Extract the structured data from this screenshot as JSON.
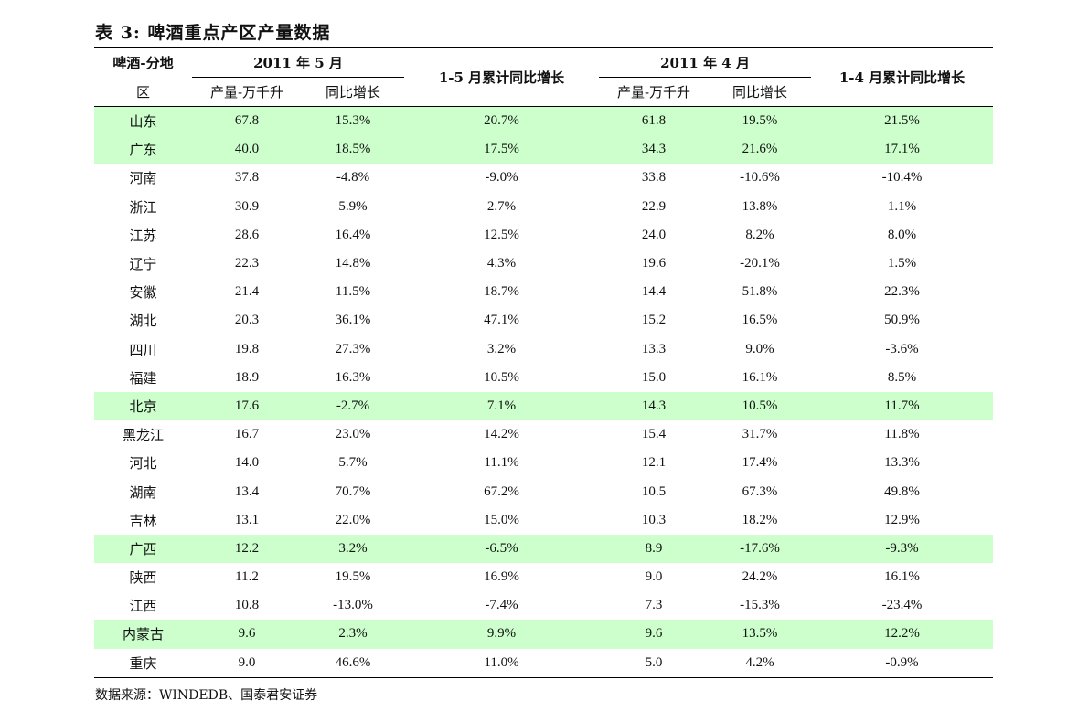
{
  "title": "表 3:  啤酒重点产区产量数据",
  "header": {
    "region_top": "啤酒-分地",
    "region_bottom": "区",
    "group1": "2011 年 5 月",
    "group1_col1": "产量-万千升",
    "group1_col2": "同比增长",
    "cum1": "1-5 月累计同比增长",
    "group2": "2011 年 4 月",
    "group2_col1": "产量-万千升",
    "group2_col2": "同比增长",
    "cum2": "1-4 月累计同比增长"
  },
  "rows": [
    {
      "region": "山东",
      "prod_may": "67.8",
      "yoy_may": "15.3%",
      "cum_5": "20.7%",
      "prod_apr": "61.8",
      "yoy_apr": "19.5%",
      "cum_4": "21.5%",
      "highlight": true
    },
    {
      "region": "广东",
      "prod_may": "40.0",
      "yoy_may": "18.5%",
      "cum_5": "17.5%",
      "prod_apr": "34.3",
      "yoy_apr": "21.6%",
      "cum_4": "17.1%",
      "highlight": true
    },
    {
      "region": "河南",
      "prod_may": "37.8",
      "yoy_may": "-4.8%",
      "cum_5": "-9.0%",
      "prod_apr": "33.8",
      "yoy_apr": "-10.6%",
      "cum_4": "-10.4%",
      "highlight": false
    },
    {
      "region": "浙江",
      "prod_may": "30.9",
      "yoy_may": "5.9%",
      "cum_5": "2.7%",
      "prod_apr": "22.9",
      "yoy_apr": "13.8%",
      "cum_4": "1.1%",
      "highlight": false
    },
    {
      "region": "江苏",
      "prod_may": "28.6",
      "yoy_may": "16.4%",
      "cum_5": "12.5%",
      "prod_apr": "24.0",
      "yoy_apr": "8.2%",
      "cum_4": "8.0%",
      "highlight": false
    },
    {
      "region": "辽宁",
      "prod_may": "22.3",
      "yoy_may": "14.8%",
      "cum_5": "4.3%",
      "prod_apr": "19.6",
      "yoy_apr": "-20.1%",
      "cum_4": "1.5%",
      "highlight": false
    },
    {
      "region": "安徽",
      "prod_may": "21.4",
      "yoy_may": "11.5%",
      "cum_5": "18.7%",
      "prod_apr": "14.4",
      "yoy_apr": "51.8%",
      "cum_4": "22.3%",
      "highlight": false
    },
    {
      "region": "湖北",
      "prod_may": "20.3",
      "yoy_may": "36.1%",
      "cum_5": "47.1%",
      "prod_apr": "15.2",
      "yoy_apr": "16.5%",
      "cum_4": "50.9%",
      "highlight": false
    },
    {
      "region": "四川",
      "prod_may": "19.8",
      "yoy_may": "27.3%",
      "cum_5": "3.2%",
      "prod_apr": "13.3",
      "yoy_apr": "9.0%",
      "cum_4": "-3.6%",
      "highlight": false
    },
    {
      "region": "福建",
      "prod_may": "18.9",
      "yoy_may": "16.3%",
      "cum_5": "10.5%",
      "prod_apr": "15.0",
      "yoy_apr": "16.1%",
      "cum_4": "8.5%",
      "highlight": false
    },
    {
      "region": "北京",
      "prod_may": "17.6",
      "yoy_may": "-2.7%",
      "cum_5": "7.1%",
      "prod_apr": "14.3",
      "yoy_apr": "10.5%",
      "cum_4": "11.7%",
      "highlight": true
    },
    {
      "region": "黑龙江",
      "prod_may": "16.7",
      "yoy_may": "23.0%",
      "cum_5": "14.2%",
      "prod_apr": "15.4",
      "yoy_apr": "31.7%",
      "cum_4": "11.8%",
      "highlight": false
    },
    {
      "region": "河北",
      "prod_may": "14.0",
      "yoy_may": "5.7%",
      "cum_5": "11.1%",
      "prod_apr": "12.1",
      "yoy_apr": "17.4%",
      "cum_4": "13.3%",
      "highlight": false
    },
    {
      "region": "湖南",
      "prod_may": "13.4",
      "yoy_may": "70.7%",
      "cum_5": "67.2%",
      "prod_apr": "10.5",
      "yoy_apr": "67.3%",
      "cum_4": "49.8%",
      "highlight": false
    },
    {
      "region": "吉林",
      "prod_may": "13.1",
      "yoy_may": "22.0%",
      "cum_5": "15.0%",
      "prod_apr": "10.3",
      "yoy_apr": "18.2%",
      "cum_4": "12.9%",
      "highlight": false
    },
    {
      "region": "广西",
      "prod_may": "12.2",
      "yoy_may": "3.2%",
      "cum_5": "-6.5%",
      "prod_apr": "8.9",
      "yoy_apr": "-17.6%",
      "cum_4": "-9.3%",
      "highlight": true
    },
    {
      "region": "陕西",
      "prod_may": "11.2",
      "yoy_may": "19.5%",
      "cum_5": "16.9%",
      "prod_apr": "9.0",
      "yoy_apr": "24.2%",
      "cum_4": "16.1%",
      "highlight": false
    },
    {
      "region": "江西",
      "prod_may": "10.8",
      "yoy_may": "-13.0%",
      "cum_5": "-7.4%",
      "prod_apr": "7.3",
      "yoy_apr": "-15.3%",
      "cum_4": "-23.4%",
      "highlight": false
    },
    {
      "region": "内蒙古",
      "prod_may": "9.6",
      "yoy_may": "2.3%",
      "cum_5": "9.9%",
      "prod_apr": "9.6",
      "yoy_apr": "13.5%",
      "cum_4": "12.2%",
      "highlight": true
    },
    {
      "region": "重庆",
      "prod_may": "9.0",
      "yoy_may": "46.6%",
      "cum_5": "11.0%",
      "prod_apr": "5.0",
      "yoy_apr": "4.2%",
      "cum_4": "-0.9%",
      "highlight": false
    }
  ],
  "colors": {
    "highlight": "#ccffcc"
  },
  "source": "数据来源：WINDEDB、国泰君安证券"
}
